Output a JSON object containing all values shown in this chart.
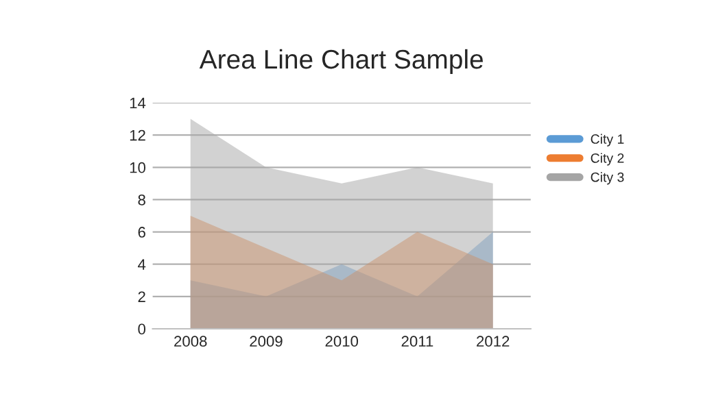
{
  "chart_data": {
    "type": "area",
    "title": "Area Line Chart Sample",
    "categories": [
      "2008",
      "2009",
      "2010",
      "2011",
      "2012"
    ],
    "series": [
      {
        "name": "City 1",
        "color": "#5b9bd5",
        "values": [
          3,
          2,
          4,
          2,
          6
        ]
      },
      {
        "name": "City 2",
        "color": "#ed7d31",
        "values": [
          7,
          5,
          3,
          6,
          4
        ]
      },
      {
        "name": "City 3",
        "color": "#a5a5a5",
        "values": [
          13,
          10,
          9,
          10,
          9
        ]
      }
    ],
    "ylim": [
      0,
      14
    ],
    "yticks": [
      0,
      2,
      4,
      6,
      8,
      10,
      12,
      14
    ],
    "grid": "y",
    "legend": "right"
  }
}
